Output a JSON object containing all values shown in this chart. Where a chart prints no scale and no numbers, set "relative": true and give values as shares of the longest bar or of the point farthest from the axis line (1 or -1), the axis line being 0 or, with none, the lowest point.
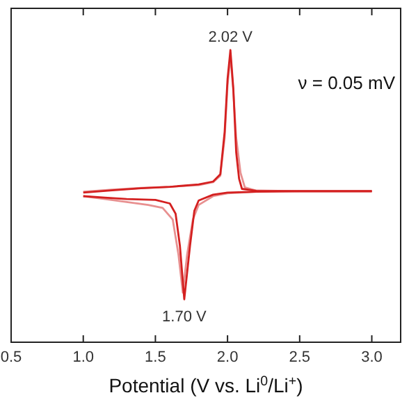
{
  "chart_data": {
    "type": "line",
    "relative": true,
    "xlabel": "Potential (V vs. Li$^{0}$/Li$^{+}$)",
    "xlim": [
      0.5,
      3.2
    ],
    "xticks": [
      {
        "value": 0.5,
        "label": "0.5"
      },
      {
        "value": 1.0,
        "label": "1.0"
      },
      {
        "value": 1.5,
        "label": "1.5"
      },
      {
        "value": 2.0,
        "label": "2.0"
      },
      {
        "value": 2.5,
        "label": "2.5"
      },
      {
        "value": 3.0,
        "label": "3.0"
      }
    ],
    "annotations": [
      {
        "text": "2.02 V",
        "x": 2.02,
        "y": 1.0
      },
      {
        "text": "1.70 V",
        "x": 1.7,
        "y": 0.147
      },
      "ν = 0.05 mV"
    ],
    "marker": "none",
    "line_style": "solid",
    "series": [
      {
        "color": "#e89090",
        "x": [
          1.0,
          1.15,
          1.3,
          1.45,
          1.55,
          1.62,
          1.66,
          1.69,
          1.72,
          1.76,
          1.8,
          1.9,
          2.0,
          2.2,
          2.5,
          3.0
        ],
        "values": [
          0.5,
          0.49,
          0.48,
          0.47,
          0.46,
          0.42,
          0.3,
          0.17,
          0.3,
          0.42,
          0.47,
          0.5,
          0.51,
          0.515,
          0.517,
          0.517
        ]
      },
      {
        "color": "#e89090",
        "x": [
          1.0,
          1.2,
          1.4,
          1.6,
          1.8,
          1.9,
          1.95,
          1.98,
          2.0,
          2.02,
          2.04,
          2.06,
          2.09,
          2.12,
          2.2,
          2.5,
          3.0
        ],
        "values": [
          0.515,
          0.522,
          0.528,
          0.532,
          0.538,
          0.548,
          0.57,
          0.7,
          0.88,
          0.98,
          0.86,
          0.7,
          0.58,
          0.53,
          0.519,
          0.517,
          0.517
        ]
      },
      {
        "color": "#d42020",
        "x": [
          1.0,
          1.15,
          1.3,
          1.5,
          1.6,
          1.64,
          1.67,
          1.7,
          1.74,
          1.77,
          1.8,
          1.9,
          2.0,
          2.2,
          2.5,
          3.0
        ],
        "values": [
          0.5,
          0.495,
          0.49,
          0.487,
          0.475,
          0.44,
          0.33,
          0.147,
          0.33,
          0.45,
          0.485,
          0.505,
          0.512,
          0.515,
          0.517,
          0.517
        ]
      },
      {
        "color": "#d42020",
        "x": [
          1.0,
          1.2,
          1.4,
          1.6,
          1.8,
          1.9,
          1.95,
          1.98,
          2.0,
          2.02,
          2.04,
          2.06,
          2.08,
          2.1,
          2.2,
          2.5,
          3.0
        ],
        "values": [
          0.512,
          0.52,
          0.527,
          0.532,
          0.54,
          0.55,
          0.575,
          0.72,
          0.9,
          1.0,
          0.87,
          0.65,
          0.56,
          0.525,
          0.518,
          0.517,
          0.517
        ]
      }
    ]
  }
}
